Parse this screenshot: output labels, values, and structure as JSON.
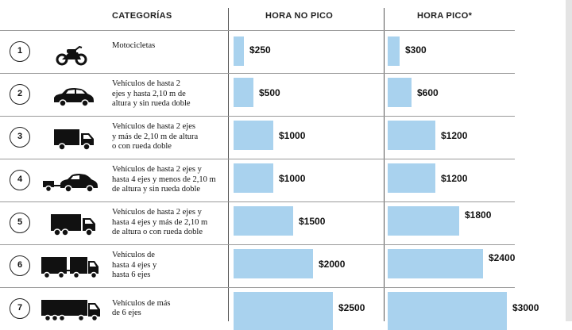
{
  "headers": {
    "category": "CATEGORÍAS",
    "off_peak": "HORA NO PICO",
    "peak": "HORA PICO*"
  },
  "colors": {
    "bar": "#a9d2ee",
    "text": "#111111",
    "grid": "#9a9a9a"
  },
  "chart_data": {
    "type": "bar",
    "orientation": "horizontal",
    "categories": [
      "1",
      "2",
      "3",
      "4",
      "5",
      "6",
      "7"
    ],
    "category_descriptions": [
      "Motocicletas",
      "Vehículos de hasta 2\nejes y hasta 2,10 m de\naltura y sin rueda doble",
      "Vehículos de hasta 2 ejes\ny más de 2,10 m de altura\no con rueda doble",
      "Vehículos de hasta 2 ejes y\nhasta 4 ejes y menos de 2,10 m\nde altura y sin rueda doble",
      "Vehículos de hasta 2 ejes y\nhasta 4 ejes y más de 2,10 m\nde altura o con rueda doble",
      "Vehículos de\nhasta 4 ejes y\nhasta 6 ejes",
      "Vehículos de más\nde 6 ejes"
    ],
    "icons": [
      "motorcycle-icon",
      "car-icon",
      "small-truck-icon",
      "car-with-trailer-icon",
      "truck-icon",
      "truck-with-trailer-icon",
      "semi-trailer-truck-icon"
    ],
    "series": [
      {
        "name": "HORA NO PICO",
        "values": [
          250,
          500,
          1000,
          1000,
          1500,
          2000,
          2500
        ],
        "labels": [
          "$250",
          "$500",
          "$1000",
          "$1000",
          "$1500",
          "$2000",
          "$2500"
        ]
      },
      {
        "name": "HORA PICO*",
        "values": [
          300,
          600,
          1200,
          1200,
          1800,
          2400,
          3000
        ],
        "labels": [
          "$300",
          "$600",
          "$1200",
          "$1200",
          "$1800",
          "$2400",
          "$3000"
        ]
      }
    ]
  }
}
